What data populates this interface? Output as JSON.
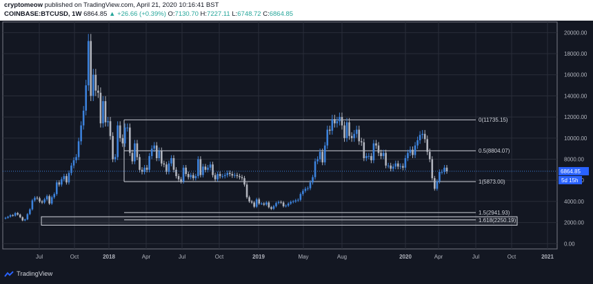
{
  "header": {
    "author": "cryptomeow",
    "published": "published on TradingView.com, April 21, 2020 10:16:41 BST",
    "symbol": "COINBASE:BTCUSD, 1W",
    "last": "6864.85",
    "change": "▲ +26.66 (+0.39%)",
    "o_label": "O:",
    "o_val": "7130.70",
    "h_label": "H:",
    "h_val": "7227.11",
    "l_label": "L:",
    "l_val": "6748.72",
    "c_label": "C:",
    "c_val": "6864.85"
  },
  "price_tag": {
    "price": "6864.85",
    "countdown": "5d 15h"
  },
  "footer": {
    "brand": "TradingView"
  },
  "colors": {
    "up": "#3c82dc",
    "down": "#b2b5be",
    "bg": "#131722",
    "grid": "#2a2e39",
    "fib": "#d1d4dc",
    "tag": "#2962ff"
  },
  "chart_data": {
    "type": "candlestick",
    "title": "",
    "y_axis": {
      "min": -500,
      "max": 21000,
      "ticks": [
        0,
        2000,
        4000,
        6000,
        8000,
        10000,
        12000,
        14000,
        16000,
        18000,
        20000
      ],
      "tick_labels": [
        "0.00",
        "2000.00",
        "4000.00",
        "6000.00",
        "8000.00",
        "10000.00",
        "12000.00",
        "14000.00",
        "16000.00",
        "18000.00",
        "20000.00"
      ]
    },
    "x_axis": {
      "ticks": [
        "Jul",
        "Oct",
        "2018",
        "Apr",
        "Jul",
        "Oct",
        "2019",
        "May",
        "Aug",
        "2020",
        "Apr",
        "Jul",
        "Oct",
        "2021"
      ]
    },
    "fib_levels": [
      {
        "label": "0(11735.15)",
        "value": 11735.15
      },
      {
        "label": "0.5(8804.07)",
        "value": 8804.07
      },
      {
        "label": "1(5873.00)",
        "value": 5873.0
      },
      {
        "label": "1.5(2941.93)",
        "value": 2941.93
      },
      {
        "label": "1.618(2250.19)",
        "value": 2250.19
      }
    ],
    "support_box": {
      "top": 2550,
      "bottom": 1750
    },
    "last_price": 6864.85,
    "weekly_closes": [
      2450,
      2550,
      2700,
      2650,
      2900,
      2750,
      2500,
      2200,
      2300,
      2800,
      3250,
      4100,
      4350,
      4300,
      4000,
      3900,
      4200,
      4500,
      3800,
      4400,
      4700,
      5800,
      5600,
      6100,
      6400,
      5800,
      6700,
      7400,
      7900,
      8200,
      9700,
      11200,
      12600,
      15000,
      19200,
      14000,
      16000,
      14500,
      14300,
      11400,
      13500,
      11500,
      11600,
      10200,
      8000,
      8200,
      11200,
      10000,
      9500,
      11000,
      11000,
      8600,
      7800,
      9500,
      8200,
      7000,
      6800,
      7200,
      7000,
      8300,
      9000,
      9300,
      8100,
      8800,
      7600,
      7500,
      6800,
      7600,
      8100,
      7000,
      6400,
      6100,
      5900,
      7200,
      6600,
      6300,
      6500,
      6200,
      6400,
      8000,
      6500,
      7300,
      7000,
      7200,
      7500,
      6500,
      6100,
      6600,
      6400,
      6400,
      6500,
      6700,
      6600,
      6450,
      6500,
      6400,
      6300,
      6200,
      5600,
      4400,
      4000,
      3900,
      3500,
      4200,
      3800,
      3800,
      3700,
      3900,
      3450,
      3300,
      3550,
      3850,
      3950,
      3900,
      3550,
      3600,
      3800,
      3950,
      4000,
      4100,
      4150,
      4700,
      5000,
      5200,
      5250,
      5800,
      6300,
      7800,
      8000,
      8700,
      7700,
      9300,
      10800,
      10700,
      11800,
      11400,
      11600,
      12000,
      11200,
      10000,
      11500,
      10200,
      10000,
      10400,
      10800,
      9700,
      9600,
      8100,
      8300,
      8300,
      7900,
      9500,
      9300,
      8600,
      8300,
      8600,
      7400,
      7400,
      7100,
      7300,
      7600,
      7300,
      7350,
      7200,
      8100,
      8600,
      8900,
      8400,
      9300,
      9800,
      10300,
      10400,
      9900,
      8700,
      8000,
      6200,
      5200,
      5900,
      6800,
      6800,
      7200,
      6864.85
    ]
  }
}
